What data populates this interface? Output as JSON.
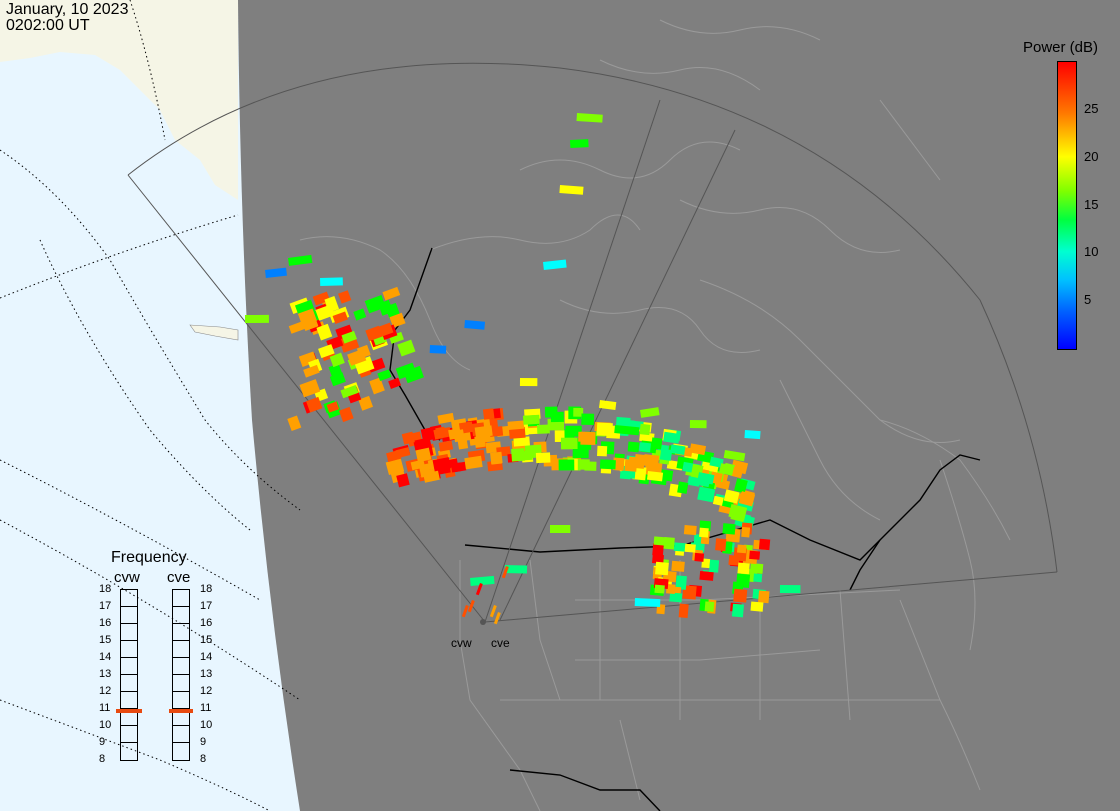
{
  "header": {
    "date": "January, 10 2023",
    "time": "0202:00 UT"
  },
  "legend": {
    "title": "Power (dB)",
    "ticks": [
      {
        "value": 25,
        "label": "25"
      },
      {
        "value": 20,
        "label": "20"
      },
      {
        "value": 15,
        "label": "15"
      },
      {
        "value": 10,
        "label": "10"
      },
      {
        "value": 5,
        "label": "5"
      }
    ],
    "range": [
      0,
      30
    ],
    "colors": [
      "#0000ff",
      "#0080ff",
      "#00ffff",
      "#00ff80",
      "#00ff00",
      "#80ff00",
      "#ffff00",
      "#ffa000",
      "#ff5000",
      "#ff0000"
    ]
  },
  "frequency": {
    "title": "Frequency",
    "radars": [
      {
        "name": "cvw",
        "current": 10.8
      },
      {
        "name": "cve",
        "current": 10.8
      }
    ],
    "scale": [
      "18",
      "17",
      "16",
      "15",
      "14",
      "13",
      "12",
      "11",
      "10",
      "9",
      "8"
    ],
    "marker_color": "#e84a10"
  },
  "radars_on_map": [
    {
      "name": "cvw"
    },
    {
      "name": "cve"
    }
  ],
  "map_colors": {
    "ocean": "#e8f6ff",
    "land_outside": "#f5f5e6",
    "night": "#7f7f7f",
    "borders": "#9a9a9a",
    "country_border": "#000000"
  }
}
